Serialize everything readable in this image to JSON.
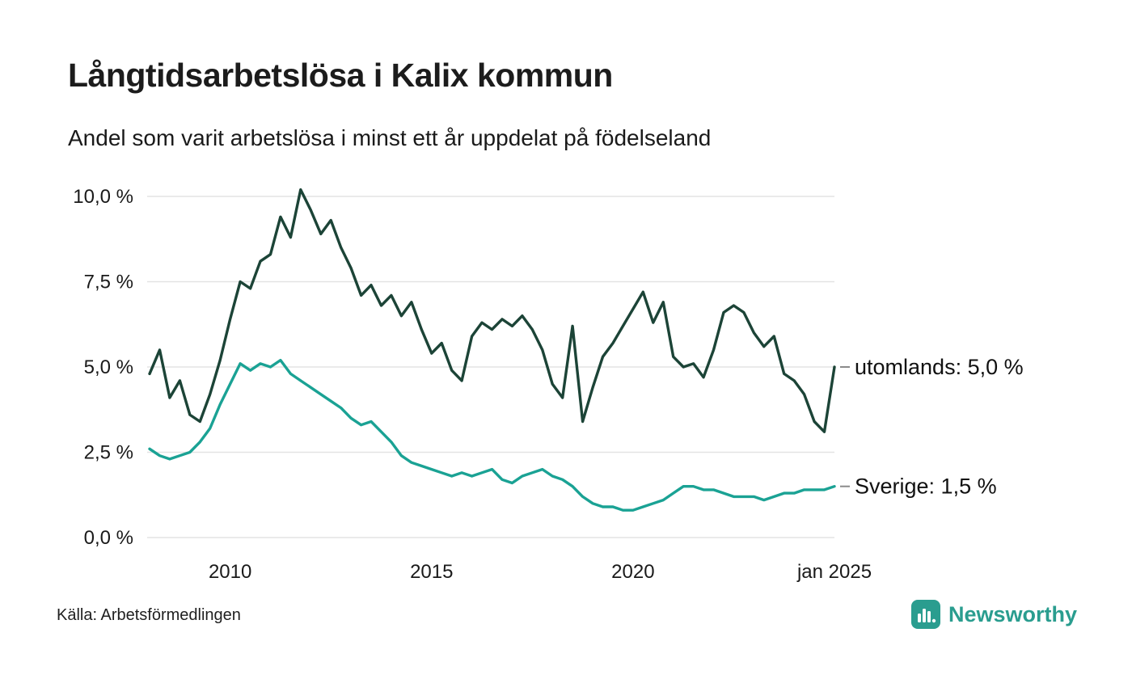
{
  "title": "Långtidsarbetslösa i Kalix kommun",
  "subtitle": "Andel som varit arbetslösa i minst ett år uppdelat på födelseland",
  "source": "Källa: Arbetsförmedlingen",
  "logo": {
    "text": "Newsworthy",
    "color": "#2a9d8f",
    "icon": "bar-chart-icon"
  },
  "chart_data": {
    "type": "line",
    "title": "Långtidsarbetslösa i Kalix kommun",
    "subtitle": "Andel som varit arbetslösa i minst ett år uppdelat på födelseland",
    "xlabel": "",
    "ylabel": "",
    "xlim": [
      2008.0,
      2025.0
    ],
    "ylim": [
      0,
      10
    ],
    "grid": "horizontal",
    "grid_color": "#e3e3e3",
    "y_ticks": [
      {
        "value": 0,
        "label": "0,0 %"
      },
      {
        "value": 2.5,
        "label": "2,5 %"
      },
      {
        "value": 5,
        "label": "5,0 %"
      },
      {
        "value": 7.5,
        "label": "7,5 %"
      },
      {
        "value": 10,
        "label": "10,0 %"
      }
    ],
    "x_ticks": [
      {
        "value": 2010,
        "label": "2010"
      },
      {
        "value": 2015,
        "label": "2015"
      },
      {
        "value": 2020,
        "label": "2020"
      },
      {
        "value": 2025,
        "label": "jan 2025"
      }
    ],
    "series": [
      {
        "name": "utomlands",
        "color": "#1c4437",
        "end_label": "utomlands: 5,0 %",
        "end_value_label": "5,0 %",
        "x": [
          2008.0,
          2008.25,
          2008.5,
          2008.75,
          2009.0,
          2009.25,
          2009.5,
          2009.75,
          2010.0,
          2010.25,
          2010.5,
          2010.75,
          2011.0,
          2011.25,
          2011.5,
          2011.75,
          2012.0,
          2012.25,
          2012.5,
          2012.75,
          2013.0,
          2013.25,
          2013.5,
          2013.75,
          2014.0,
          2014.25,
          2014.5,
          2014.75,
          2015.0,
          2015.25,
          2015.5,
          2015.75,
          2016.0,
          2016.25,
          2016.5,
          2016.75,
          2017.0,
          2017.25,
          2017.5,
          2017.75,
          2018.0,
          2018.25,
          2018.5,
          2018.75,
          2019.0,
          2019.25,
          2019.5,
          2019.75,
          2020.0,
          2020.25,
          2020.5,
          2020.75,
          2021.0,
          2021.25,
          2021.5,
          2021.75,
          2022.0,
          2022.25,
          2022.5,
          2022.75,
          2023.0,
          2023.25,
          2023.5,
          2023.75,
          2024.0,
          2024.25,
          2024.5,
          2024.75,
          2025.0
        ],
        "y": [
          4.8,
          5.5,
          4.1,
          4.6,
          3.6,
          3.4,
          4.2,
          5.2,
          6.4,
          7.5,
          7.3,
          8.1,
          8.3,
          9.4,
          8.8,
          10.2,
          9.6,
          8.9,
          9.3,
          8.5,
          7.9,
          7.1,
          7.4,
          6.8,
          7.1,
          6.5,
          6.9,
          6.1,
          5.4,
          5.7,
          4.9,
          4.6,
          5.9,
          6.3,
          6.1,
          6.4,
          6.2,
          6.5,
          6.1,
          5.5,
          4.5,
          4.1,
          6.2,
          3.4,
          4.4,
          5.3,
          5.7,
          6.2,
          6.7,
          7.2,
          6.3,
          6.9,
          5.3,
          5.0,
          5.1,
          4.7,
          5.5,
          6.6,
          6.8,
          6.6,
          6.0,
          5.6,
          5.9,
          4.8,
          4.6,
          4.2,
          3.4,
          3.1,
          5.0
        ]
      },
      {
        "name": "Sverige",
        "color": "#1aa294",
        "end_label": "Sverige: 1,5 %",
        "end_value_label": "1,5 %",
        "x": [
          2008.0,
          2008.25,
          2008.5,
          2008.75,
          2009.0,
          2009.25,
          2009.5,
          2009.75,
          2010.0,
          2010.25,
          2010.5,
          2010.75,
          2011.0,
          2011.25,
          2011.5,
          2011.75,
          2012.0,
          2012.25,
          2012.5,
          2012.75,
          2013.0,
          2013.25,
          2013.5,
          2013.75,
          2014.0,
          2014.25,
          2014.5,
          2014.75,
          2015.0,
          2015.25,
          2015.5,
          2015.75,
          2016.0,
          2016.25,
          2016.5,
          2016.75,
          2017.0,
          2017.25,
          2017.5,
          2017.75,
          2018.0,
          2018.25,
          2018.5,
          2018.75,
          2019.0,
          2019.25,
          2019.5,
          2019.75,
          2020.0,
          2020.25,
          2020.5,
          2020.75,
          2021.0,
          2021.25,
          2021.5,
          2021.75,
          2022.0,
          2022.25,
          2022.5,
          2022.75,
          2023.0,
          2023.25,
          2023.5,
          2023.75,
          2024.0,
          2024.25,
          2024.5,
          2024.75,
          2025.0
        ],
        "y": [
          2.6,
          2.4,
          2.3,
          2.4,
          2.5,
          2.8,
          3.2,
          3.9,
          4.5,
          5.1,
          4.9,
          5.1,
          5.0,
          5.2,
          4.8,
          4.6,
          4.4,
          4.2,
          4.0,
          3.8,
          3.5,
          3.3,
          3.4,
          3.1,
          2.8,
          2.4,
          2.2,
          2.1,
          2.0,
          1.9,
          1.8,
          1.9,
          1.8,
          1.9,
          2.0,
          1.7,
          1.6,
          1.8,
          1.9,
          2.0,
          1.8,
          1.7,
          1.5,
          1.2,
          1.0,
          0.9,
          0.9,
          0.8,
          0.8,
          0.9,
          1.0,
          1.1,
          1.3,
          1.5,
          1.5,
          1.4,
          1.4,
          1.3,
          1.2,
          1.2,
          1.2,
          1.1,
          1.2,
          1.3,
          1.3,
          1.4,
          1.4,
          1.4,
          1.5
        ]
      }
    ]
  }
}
